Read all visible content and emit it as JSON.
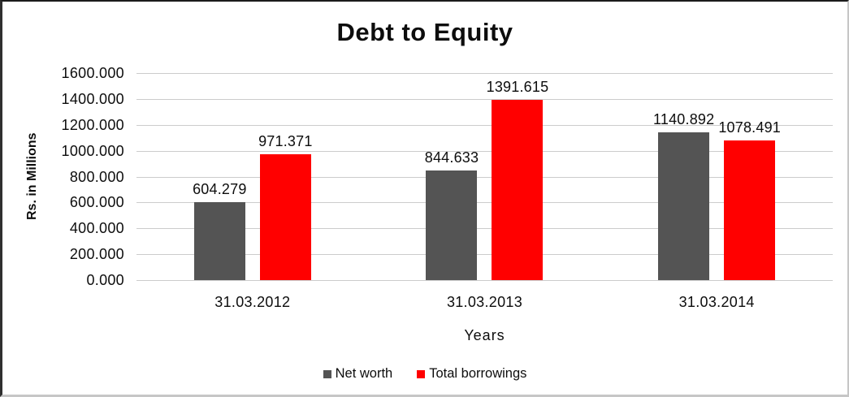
{
  "chart_data": {
    "type": "bar",
    "title": "Debt to Equity",
    "xlabel": "Years",
    "ylabel": "Rs. in Millions",
    "categories": [
      "31.03.2012",
      "31.03.2013",
      "31.03.2014"
    ],
    "series": [
      {
        "name": "Net worth",
        "color": "#545454",
        "values": [
          604.279,
          844.633,
          1140.892
        ]
      },
      {
        "name": "Total borrowings",
        "color": "#FF0000",
        "values": [
          971.371,
          1391.615,
          1078.491
        ]
      }
    ],
    "data_labels": [
      [
        "604.279",
        "844.633",
        "1140.892"
      ],
      [
        "971.371",
        "1391.615",
        "1078.491"
      ]
    ],
    "ylim": [
      0,
      1600
    ],
    "ytick_step": 200,
    "ytick_labels": [
      "0.000",
      "200.000",
      "400.000",
      "600.000",
      "800.000",
      "1000.000",
      "1200.000",
      "1400.000",
      "1600.000"
    ],
    "grid": true,
    "gridline_color": "#cccccc",
    "legend_position": "bottom",
    "value_label_decimals": 3
  }
}
